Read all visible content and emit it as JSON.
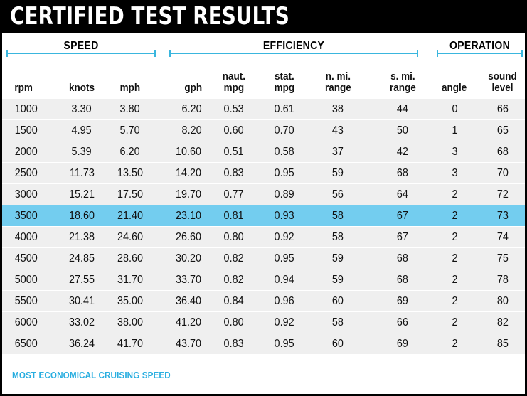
{
  "title": "CERTIFIED TEST RESULTS",
  "groups": {
    "speed": "SPEED",
    "efficiency": "EFFICIENCY",
    "operation": "OPERATION"
  },
  "columns": [
    {
      "key": "rpm",
      "l1": "",
      "l2": "rpm",
      "align": "left"
    },
    {
      "key": "knots",
      "l1": "",
      "l2": "knots",
      "align": "center"
    },
    {
      "key": "mph",
      "l1": "",
      "l2": "mph",
      "align": "center"
    },
    {
      "key": "gph",
      "l1": "",
      "l2": "gph",
      "align": "right"
    },
    {
      "key": "naut_mpg",
      "l1": "naut.",
      "l2": "mpg",
      "align": "center"
    },
    {
      "key": "stat_mpg",
      "l1": "stat.",
      "l2": "mpg",
      "align": "center"
    },
    {
      "key": "nmi_range",
      "l1": "n. mi.",
      "l2": "range",
      "align": "center"
    },
    {
      "key": "smi_range",
      "l1": "s. mi.",
      "l2": "range",
      "align": "center"
    },
    {
      "key": "angle",
      "l1": "",
      "l2": "angle",
      "align": "center"
    },
    {
      "key": "sound",
      "l1": "sound",
      "l2": "level",
      "align": "center"
    }
  ],
  "rows": [
    [
      "1000",
      "3.30",
      "3.80",
      "6.20",
      "0.53",
      "0.61",
      "38",
      "44",
      "0",
      "66"
    ],
    [
      "1500",
      "4.95",
      "5.70",
      "8.20",
      "0.60",
      "0.70",
      "43",
      "50",
      "1",
      "65"
    ],
    [
      "2000",
      "5.39",
      "6.20",
      "10.60",
      "0.51",
      "0.58",
      "37",
      "42",
      "3",
      "68"
    ],
    [
      "2500",
      "11.73",
      "13.50",
      "14.20",
      "0.83",
      "0.95",
      "59",
      "68",
      "3",
      "70"
    ],
    [
      "3000",
      "15.21",
      "17.50",
      "19.70",
      "0.77",
      "0.89",
      "56",
      "64",
      "2",
      "72"
    ],
    [
      "3500",
      "18.60",
      "21.40",
      "23.10",
      "0.81",
      "0.93",
      "58",
      "67",
      "2",
      "73"
    ],
    [
      "4000",
      "21.38",
      "24.60",
      "26.60",
      "0.80",
      "0.92",
      "58",
      "67",
      "2",
      "74"
    ],
    [
      "4500",
      "24.85",
      "28.60",
      "30.20",
      "0.82",
      "0.95",
      "59",
      "68",
      "2",
      "75"
    ],
    [
      "5000",
      "27.55",
      "31.70",
      "33.70",
      "0.82",
      "0.94",
      "59",
      "68",
      "2",
      "78"
    ],
    [
      "5500",
      "30.41",
      "35.00",
      "36.40",
      "0.84",
      "0.96",
      "60",
      "69",
      "2",
      "80"
    ],
    [
      "6000",
      "33.02",
      "38.00",
      "41.20",
      "0.80",
      "0.92",
      "58",
      "66",
      "2",
      "82"
    ],
    [
      "6500",
      "36.24",
      "41.70",
      "43.70",
      "0.83",
      "0.95",
      "60",
      "69",
      "2",
      "85"
    ]
  ],
  "highlight_row": 5,
  "footnote": "MOST ECONOMICAL CRUISING SPEED",
  "colors": {
    "title_bg": "#000000",
    "accent": "#3ab6de",
    "highlight": "#73cdef",
    "row_bg": "#efefef",
    "footnote": "#29aee0"
  }
}
